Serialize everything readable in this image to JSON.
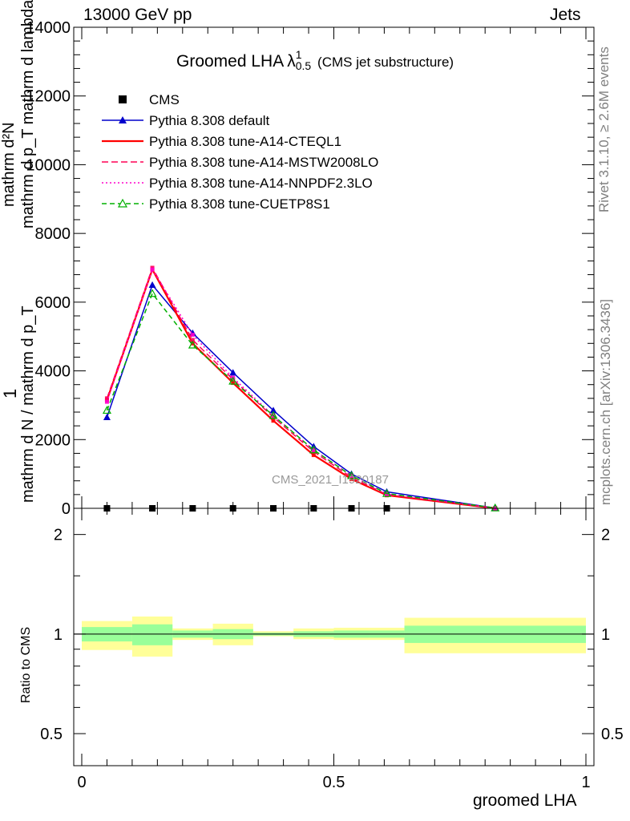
{
  "header": {
    "energy_label": "13000 GeV pp",
    "category_label": "Jets",
    "rivet_label": "Rivet 3.1.10, ≥ 2.6M events",
    "mcplots_label": "mcplots.cern.ch [arXiv:1306.3436]",
    "watermark": "CMS_2021_I1920187"
  },
  "chart_data": [
    {
      "type": "line",
      "title": "Groomed LHA",
      "title_symbol": "λ",
      "title_sup": "1",
      "title_sub": "0.5",
      "title_note": "(CMS jet substructure)",
      "ylabel_numerator": "mathrm d²N",
      "ylabel_denominator": "mathrm d p_T mathrm d lambda",
      "ylabel_prefactor": "1",
      "ylabel_subfactor": "mathrm d N / mathrm d p_T",
      "xlim": [
        0,
        1
      ],
      "ylim": [
        0,
        14000
      ],
      "yticks": [
        0,
        2000,
        4000,
        6000,
        8000,
        10000,
        12000,
        14000
      ],
      "ytick_labels": [
        "0",
        "2000",
        "4000",
        "6000",
        "8000",
        "10000",
        "12000",
        "14000"
      ],
      "x": [
        0.05,
        0.14,
        0.22,
        0.3,
        0.38,
        0.46,
        0.535,
        0.605,
        0.82
      ],
      "series": [
        {
          "name": "CMS",
          "color": "#000000",
          "style": "points",
          "values": [
            0,
            0,
            0,
            0,
            0,
            0,
            0,
            0,
            null
          ]
        },
        {
          "name": "Pythia 8.308 default",
          "color": "#0000cc",
          "style": "solid-triangle",
          "values": [
            2650,
            6500,
            5100,
            3950,
            2850,
            1800,
            1000,
            480,
            10
          ]
        },
        {
          "name": "Pythia 8.308 tune-A14-CTEQL1",
          "color": "#ff0000",
          "style": "solid",
          "values": [
            3150,
            6950,
            4800,
            3650,
            2550,
            1550,
            850,
            380,
            0
          ]
        },
        {
          "name": "Pythia 8.308 tune-A14-MSTW2008LO",
          "color": "#ff0055",
          "style": "dashed",
          "values": [
            3200,
            7000,
            4900,
            3750,
            2650,
            1650,
            900,
            400,
            5
          ]
        },
        {
          "name": "Pythia 8.308 tune-A14-NNPDF2.3LO",
          "color": "#ff00cc",
          "style": "dotted",
          "values": [
            3100,
            6950,
            5050,
            3800,
            2700,
            1700,
            950,
            420,
            5
          ]
        },
        {
          "name": "Pythia 8.308 tune-CUETP8S1",
          "color": "#00b000",
          "style": "dashed-open-triangle",
          "values": [
            2850,
            6250,
            4750,
            3700,
            2700,
            1700,
            950,
            430,
            10
          ]
        }
      ]
    },
    {
      "type": "area",
      "title": "",
      "ylabel": "Ratio to CMS",
      "xlabel": "groomed LHA",
      "xlim": [
        0,
        1
      ],
      "ylim": [
        0.4,
        2.4
      ],
      "log_y": true,
      "yticks": [
        0.5,
        1,
        2
      ],
      "ytick_labels": [
        "0.5",
        "1",
        "2"
      ],
      "xticks": [
        0,
        0.5,
        1
      ],
      "xtick_labels": [
        "0",
        "0.5",
        "1"
      ],
      "bins": [
        {
          "lo": 0.0,
          "hi": 0.1,
          "stat_lo": 0.95,
          "stat_hi": 1.05,
          "tot_lo": 0.895,
          "tot_hi": 1.095
        },
        {
          "lo": 0.1,
          "hi": 0.18,
          "stat_lo": 0.925,
          "stat_hi": 1.07,
          "tot_lo": 0.855,
          "tot_hi": 1.13
        },
        {
          "lo": 0.18,
          "hi": 0.26,
          "stat_lo": 0.975,
          "stat_hi": 1.025,
          "tot_lo": 0.96,
          "tot_hi": 1.04
        },
        {
          "lo": 0.26,
          "hi": 0.34,
          "stat_lo": 0.965,
          "stat_hi": 1.035,
          "tot_lo": 0.925,
          "tot_hi": 1.075
        },
        {
          "lo": 0.34,
          "hi": 0.42,
          "stat_lo": 0.99,
          "stat_hi": 1.01,
          "tot_lo": 0.985,
          "tot_hi": 1.02
        },
        {
          "lo": 0.42,
          "hi": 0.5,
          "stat_lo": 0.98,
          "stat_hi": 1.02,
          "tot_lo": 0.965,
          "tot_hi": 1.04
        },
        {
          "lo": 0.5,
          "hi": 0.57,
          "stat_lo": 0.975,
          "stat_hi": 1.025,
          "tot_lo": 0.96,
          "tot_hi": 1.045
        },
        {
          "lo": 0.57,
          "hi": 0.64,
          "stat_lo": 0.975,
          "stat_hi": 1.025,
          "tot_lo": 0.96,
          "tot_hi": 1.045
        },
        {
          "lo": 0.64,
          "hi": 1.0,
          "stat_lo": 0.94,
          "stat_hi": 1.06,
          "tot_lo": 0.875,
          "tot_hi": 1.12
        }
      ],
      "stat_color": "#99ff99",
      "tot_color": "#ffff99"
    }
  ]
}
